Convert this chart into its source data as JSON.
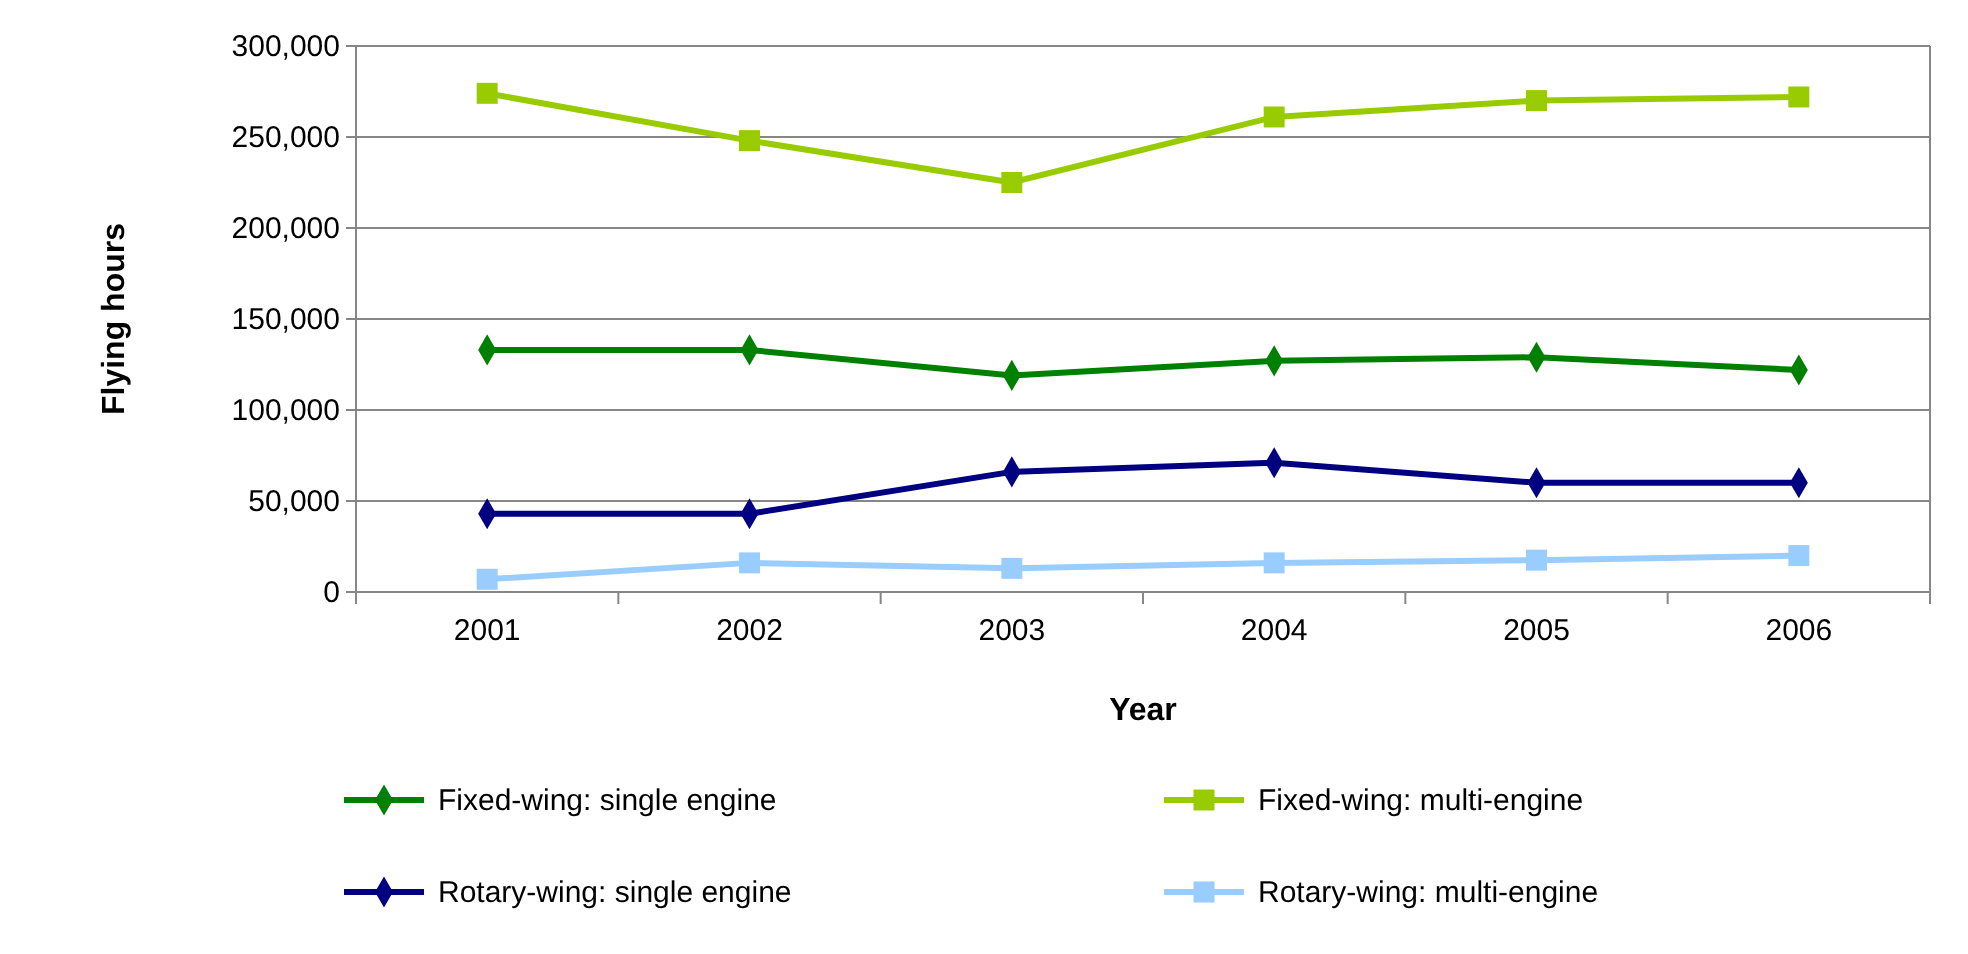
{
  "chart_data": {
    "type": "line",
    "xlabel": "Year",
    "ylabel": "Flying hours",
    "categories": [
      "2001",
      "2002",
      "2003",
      "2004",
      "2005",
      "2006"
    ],
    "series": [
      {
        "name": "Fixed-wing: single engine",
        "color": "#008000",
        "marker": "diamond",
        "values": [
          133000,
          133000,
          119000,
          127000,
          129000,
          122000
        ]
      },
      {
        "name": "Fixed-wing: multi-engine",
        "color": "#99cc00",
        "marker": "square",
        "values": [
          274000,
          248000,
          225000,
          261000,
          270000,
          272000
        ]
      },
      {
        "name": "Rotary-wing: single engine",
        "color": "#000080",
        "marker": "diamond",
        "values": [
          43000,
          43000,
          66000,
          71000,
          60000,
          60000
        ]
      },
      {
        "name": "Rotary-wing: multi-engine",
        "color": "#99ccff",
        "marker": "square",
        "values": [
          7000,
          16000,
          13000,
          16000,
          17500,
          20000
        ]
      }
    ],
    "ylim": [
      0,
      300000
    ],
    "yticks": [
      {
        "value": 0,
        "label": "0"
      },
      {
        "value": 50000,
        "label": "50,000"
      },
      {
        "value": 100000,
        "label": "100,000"
      },
      {
        "value": 150000,
        "label": "150,000"
      },
      {
        "value": 200000,
        "label": "200,000"
      },
      {
        "value": 250000,
        "label": "250,000"
      },
      {
        "value": 300000,
        "label": "300,000"
      }
    ],
    "grid": "y",
    "legend": "bottom",
    "line_style": "solid"
  }
}
